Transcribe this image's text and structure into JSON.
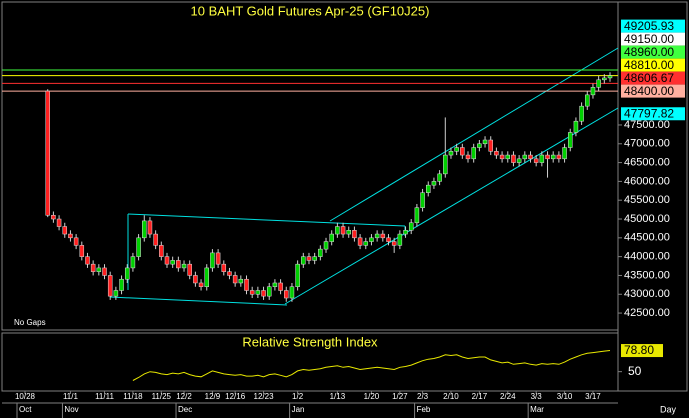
{
  "chart_data": {
    "type": "candlestick",
    "title": "10 BAHT Gold Futures Apr-25  (GF10J25)",
    "note": "No Gaps",
    "x_unit": "Day",
    "categories": [
      "10/28",
      null,
      null,
      null,
      null,
      null,
      null,
      null,
      "11/1",
      null,
      null,
      null,
      null,
      null,
      "11/11",
      null,
      null,
      null,
      null,
      "11/18",
      null,
      null,
      null,
      null,
      "11/25",
      null,
      null,
      null,
      "12/2",
      null,
      null,
      null,
      null,
      "12/9",
      null,
      null,
      null,
      "12/16",
      null,
      null,
      null,
      null,
      "12/23",
      null,
      null,
      null,
      null,
      null,
      "1/2",
      null,
      null,
      null,
      null,
      null,
      null,
      "1/13",
      null,
      null,
      null,
      null,
      null,
      "1/20",
      null,
      null,
      null,
      null,
      "1/27",
      null,
      null,
      null,
      "2/3",
      null,
      null,
      null,
      null,
      "2/10",
      null,
      null,
      null,
      null,
      "2/17",
      null,
      null,
      null,
      null,
      "2/24",
      null,
      null,
      null,
      null,
      "3/3",
      null,
      null,
      null,
      null,
      "3/10",
      null,
      null,
      null,
      null,
      "3/17",
      null,
      null,
      null
    ],
    "months": [
      "Oct",
      null,
      null,
      null,
      null,
      null,
      null,
      null,
      "Nov",
      null,
      null,
      null,
      null,
      null,
      null,
      null,
      null,
      null,
      null,
      null,
      null,
      null,
      null,
      null,
      null,
      null,
      null,
      null,
      "Dec",
      null,
      null,
      null,
      null,
      null,
      null,
      null,
      null,
      null,
      null,
      null,
      null,
      null,
      null,
      null,
      null,
      null,
      null,
      null,
      "Jan",
      null,
      null,
      null,
      null,
      null,
      null,
      null,
      null,
      null,
      null,
      null,
      null,
      null,
      null,
      null,
      null,
      null,
      null,
      null,
      null,
      null,
      "Feb",
      null,
      null,
      null,
      null,
      null,
      null,
      null,
      null,
      null,
      null,
      null,
      null,
      null,
      null,
      null,
      null,
      null,
      null,
      null,
      "Mar",
      null,
      null,
      null,
      null,
      null,
      null,
      null,
      null,
      null,
      null,
      null,
      null,
      null
    ],
    "open": [
      null,
      null,
      null,
      null,
      48400,
      45100,
      45000,
      44800,
      44600,
      44500,
      44300,
      44000,
      43800,
      43600,
      43700,
      43500,
      42950,
      43100,
      43400,
      43700,
      44000,
      44500,
      44950,
      44600,
      44300,
      44000,
      43800,
      43900,
      43700,
      43800,
      43500,
      43300,
      43200,
      43700,
      44100,
      43800,
      43600,
      43500,
      43300,
      43400,
      43100,
      43000,
      43100,
      42950,
      43200,
      43300,
      43100,
      42900,
      43200,
      43800,
      44000,
      43900,
      44000,
      44200,
      44400,
      44600,
      44800,
      44600,
      44700,
      44500,
      44300,
      44400,
      44500,
      44600,
      44500,
      44400,
      44300,
      44600,
      44700,
      44900,
      45300,
      45700,
      45900,
      46000,
      46200,
      46700,
      46800,
      46900,
      46700,
      46600,
      46900,
      47000,
      47100,
      46800,
      46700,
      46600,
      46700,
      46500,
      46600,
      46700,
      46600,
      46500,
      46700,
      46600,
      46700,
      46600,
      46900,
      47300,
      47600,
      48000,
      48300,
      48500,
      48700,
      48750
    ],
    "high": [
      null,
      null,
      null,
      null,
      48450,
      45200,
      45100,
      44900,
      44700,
      44600,
      44400,
      44100,
      43900,
      43800,
      43800,
      43600,
      43200,
      43500,
      43800,
      44100,
      44600,
      45100,
      45050,
      44700,
      44400,
      44100,
      44000,
      44000,
      43900,
      43900,
      43600,
      43400,
      43800,
      44200,
      44200,
      43900,
      43700,
      43600,
      43500,
      43500,
      43200,
      43200,
      43200,
      43300,
      43400,
      43400,
      43200,
      43300,
      43900,
      44100,
      44100,
      44100,
      44300,
      44500,
      44700,
      44900,
      44900,
      44800,
      44800,
      44600,
      44500,
      44600,
      44700,
      44700,
      44600,
      44500,
      44700,
      44800,
      45000,
      45400,
      45800,
      46000,
      46100,
      46300,
      47700,
      46900,
      47000,
      47000,
      46800,
      47000,
      47100,
      47200,
      47200,
      46900,
      46800,
      46800,
      46800,
      46700,
      46800,
      46800,
      46700,
      46800,
      46800,
      46800,
      46800,
      47000,
      47400,
      47700,
      48100,
      48400,
      48600,
      48800,
      48850,
      48900
    ],
    "low": [
      null,
      null,
      null,
      null,
      45050,
      44900,
      44700,
      44500,
      44400,
      44200,
      43900,
      43700,
      43500,
      43500,
      43400,
      42850,
      42850,
      43000,
      43300,
      43600,
      43900,
      44400,
      44500,
      44200,
      43900,
      43700,
      43700,
      43600,
      43600,
      43400,
      43200,
      43100,
      43100,
      43600,
      43700,
      43500,
      43400,
      43200,
      43200,
      43000,
      42900,
      42900,
      42850,
      42850,
      43100,
      43000,
      42800,
      42800,
      43100,
      43700,
      43800,
      43800,
      43900,
      44100,
      44300,
      44500,
      44500,
      44500,
      44400,
      44200,
      44200,
      44300,
      44400,
      44400,
      44300,
      44100,
      44200,
      44500,
      44600,
      44800,
      45200,
      45600,
      45800,
      45900,
      46100,
      46600,
      46700,
      46600,
      46500,
      46500,
      46800,
      46900,
      46700,
      46600,
      46500,
      46500,
      46400,
      46400,
      46500,
      46500,
      46400,
      46400,
      46100,
      46500,
      46500,
      46500,
      46800,
      47200,
      47500,
      47900,
      48200,
      48400,
      48600,
      48650
    ],
    "close": [
      null,
      null,
      null,
      null,
      45100,
      45000,
      44800,
      44600,
      44500,
      44300,
      44000,
      43800,
      43600,
      43700,
      43500,
      42950,
      43100,
      43400,
      43700,
      44000,
      44500,
      44950,
      44600,
      44300,
      44000,
      43800,
      43900,
      43700,
      43800,
      43500,
      43300,
      43200,
      43700,
      44100,
      43800,
      43600,
      43500,
      43300,
      43400,
      43100,
      43000,
      43100,
      42950,
      43200,
      43300,
      43100,
      42900,
      43200,
      43800,
      44000,
      43900,
      44000,
      44200,
      44400,
      44600,
      44800,
      44600,
      44700,
      44500,
      44300,
      44400,
      44500,
      44600,
      44500,
      44400,
      44300,
      44600,
      44700,
      44900,
      45300,
      45700,
      45900,
      46000,
      46200,
      46700,
      46800,
      46900,
      46700,
      46600,
      46900,
      47000,
      47100,
      46800,
      46700,
      46600,
      46700,
      46500,
      46600,
      46700,
      46600,
      46500,
      46700,
      46600,
      46700,
      46600,
      46900,
      47300,
      47600,
      48000,
      48300,
      48500,
      48700,
      48750,
      48810
    ],
    "up_color": "#00d000",
    "down_color": "#ff2020",
    "ylim": [
      42050,
      50290
    ],
    "yticks": [
      {
        "value": 42500,
        "label": "42500.00"
      },
      {
        "value": 43000,
        "label": "43000.00"
      },
      {
        "value": 43500,
        "label": "43500.00"
      },
      {
        "value": 44000,
        "label": "44000.00"
      },
      {
        "value": 44500,
        "label": "44500.00"
      },
      {
        "value": 45000,
        "label": "45000.00"
      },
      {
        "value": 45500,
        "label": "45500.00"
      },
      {
        "value": 46000,
        "label": "46000.00"
      },
      {
        "value": 46500,
        "label": "46500.00"
      },
      {
        "value": 47000,
        "label": "47000.00"
      },
      {
        "value": 47500,
        "label": "47500.00"
      }
    ],
    "levels": [
      {
        "value": 49205.93,
        "label": "49205.93",
        "color": "#00ffff",
        "line": false
      },
      {
        "value": 49150,
        "label": "49150.00",
        "color": "#ffffff",
        "line": false
      },
      {
        "value": 48960,
        "label": "48960.00",
        "color": "#40ff40",
        "line": true
      },
      {
        "value": 48810,
        "label": "48810.00",
        "color": "#ffff00",
        "line": true
      },
      {
        "value": 48606.67,
        "label": "48606.67",
        "color": "#ff3030",
        "line": true
      },
      {
        "value": 48400,
        "label": "48400.00",
        "color": "#ffb0a0",
        "line": true
      },
      {
        "value": 47797.82,
        "label": "47797.82",
        "color": "#00ffff",
        "line": false
      }
    ],
    "rsi": {
      "title": "Relative Strength Index",
      "color": "#e8e800",
      "ylim": [
        25,
        100
      ],
      "yticks": [
        50
      ],
      "last_label": "78.80",
      "values": [
        null,
        null,
        null,
        null,
        null,
        null,
        null,
        null,
        null,
        null,
        null,
        null,
        null,
        null,
        null,
        null,
        null,
        null,
        null,
        38,
        42,
        47,
        50,
        49,
        47,
        46,
        48,
        47,
        49,
        46,
        44,
        43,
        47,
        51,
        49,
        47,
        46,
        45,
        46,
        44,
        44,
        45,
        43,
        46,
        47,
        45,
        43,
        46,
        51,
        53,
        52,
        53,
        54,
        56,
        57,
        58,
        56,
        57,
        55,
        53,
        54,
        55,
        56,
        55,
        54,
        53,
        56,
        57,
        59,
        62,
        65,
        67,
        68,
        70,
        73,
        72,
        73,
        70,
        68,
        69,
        70,
        70,
        66,
        64,
        62,
        63,
        60,
        61,
        62,
        60,
        59,
        61,
        60,
        61,
        60,
        63,
        67,
        70,
        73,
        75,
        76,
        77,
        78,
        78.8
      ]
    }
  }
}
